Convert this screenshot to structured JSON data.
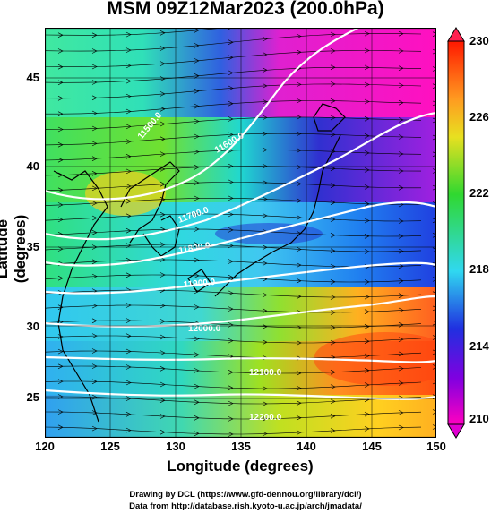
{
  "title": "MSM 09Z12Mar2023 (200.0hPa)",
  "x_axis": {
    "label": "Longitude (degrees)",
    "ticks": [
      "120",
      "125",
      "130",
      "135",
      "140",
      "145",
      "150"
    ]
  },
  "y_axis": {
    "label": "Latitude  (degrees)",
    "ticks": [
      "45",
      "40",
      "35",
      "30",
      "25"
    ]
  },
  "colorbar": {
    "ticks": [
      "230",
      "226",
      "222",
      "218",
      "214",
      "210"
    ],
    "min": 210,
    "max": 230
  },
  "contour_labels": [
    "11500.0",
    "11600.0",
    "11700.0",
    "11800.0",
    "11900.0",
    "12000.0",
    "12100.0",
    "12200.0"
  ],
  "credits": {
    "line1": "Drawing by DCL (https://www.gfd-dennou.org/library/dcl/)",
    "line2": "Data from http://database.rish.kyoto-u.ac.jp/arch/jmadata/"
  },
  "colors": {
    "low": "#e000d0",
    "mid": "#22dd44",
    "high": "#ff3300"
  }
}
